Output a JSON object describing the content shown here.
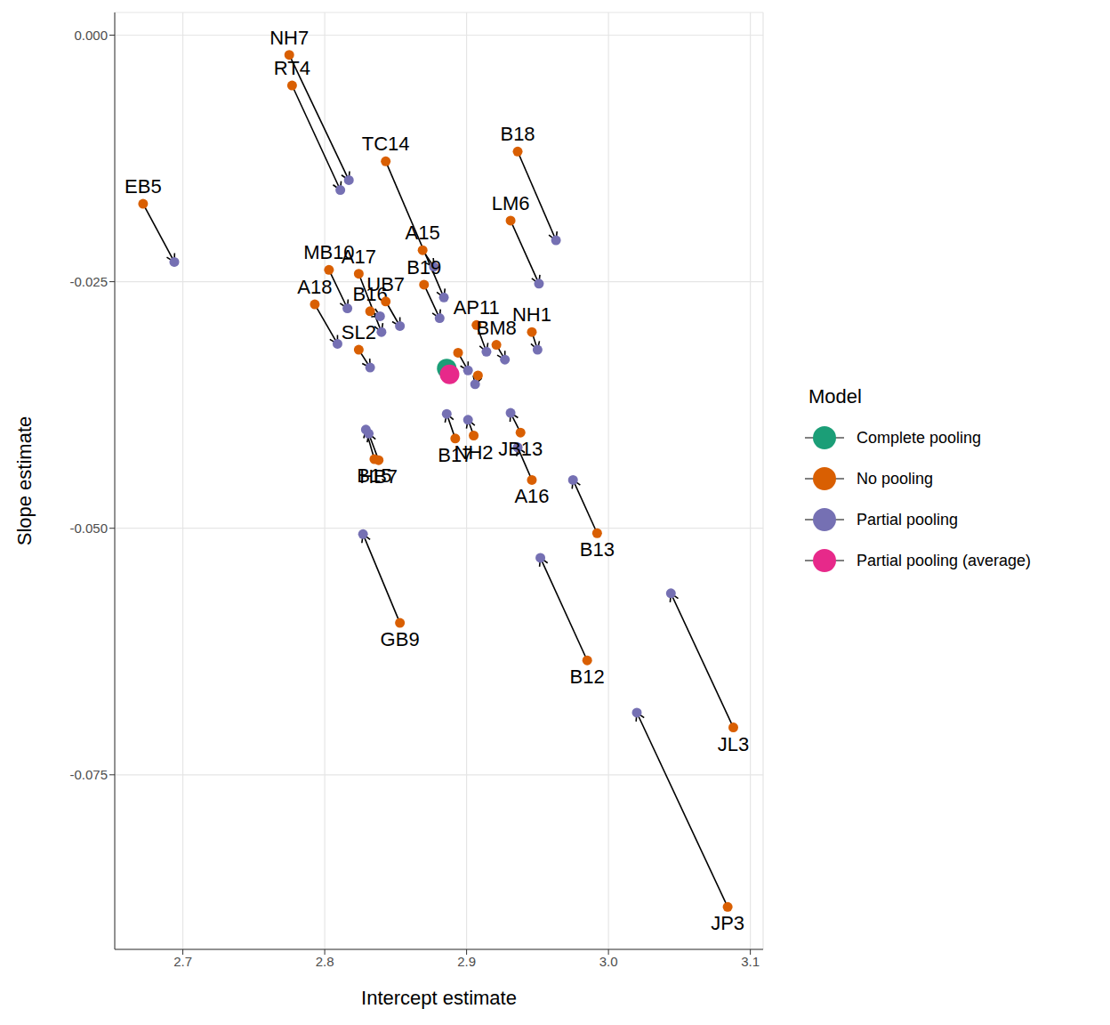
{
  "chart_data": {
    "type": "scatter",
    "x_label": "Intercept estimate",
    "y_label": "Slope estimate",
    "legend_title": "Model",
    "grid": true,
    "legend": "right",
    "xlim": [
      2.652,
      3.109
    ],
    "ylim": [
      -0.0927,
      0.0023
    ],
    "xticks": [
      2.7,
      2.8,
      2.9,
      {
        "value": 3,
        "label": "3.0"
      },
      3.1
    ],
    "yticks": [
      {
        "value": 0,
        "label": "0.000"
      },
      {
        "value": -0.025,
        "label": "-0.025"
      },
      {
        "value": -0.05,
        "label": "-0.050"
      },
      {
        "value": -0.075,
        "label": "-0.075"
      }
    ],
    "series": [
      {
        "name": "Complete pooling",
        "color": "#1B9E77",
        "x": [
          2.886
        ],
        "y": [
          -0.0338
        ]
      },
      {
        "name": "No pooling",
        "color": "#D95F02",
        "labels": [
          "NH7",
          "RT4",
          "TC14",
          "A15",
          "B19",
          "B18",
          "LM6",
          "EB5",
          "MB10",
          "A17",
          "A18",
          "B16",
          "UB7",
          "SL2",
          "AP11",
          "NH1",
          "BM8",
          null,
          null,
          "JB13",
          "A16",
          "B17",
          "NH2",
          "B15",
          "HB7",
          "B13",
          "GB9",
          "B12",
          "JL3",
          "JP3"
        ],
        "x": [
          2.775,
          2.777,
          2.843,
          2.869,
          2.87,
          2.936,
          2.931,
          2.672,
          2.803,
          2.824,
          2.793,
          2.832,
          2.843,
          2.824,
          2.907,
          2.946,
          2.921,
          2.894,
          2.908,
          2.938,
          2.946,
          2.892,
          2.905,
          2.835,
          2.838,
          2.992,
          2.853,
          2.985,
          3.088,
          3.084
        ],
        "y": [
          -0.002,
          -0.0051,
          -0.0128,
          -0.0218,
          -0.0253,
          -0.0118,
          -0.0188,
          -0.0171,
          -0.0238,
          -0.0242,
          -0.0273,
          -0.028,
          -0.027,
          -0.0319,
          -0.0294,
          -0.0301,
          -0.0314,
          -0.0322,
          -0.0345,
          -0.0403,
          -0.0451,
          -0.0409,
          -0.0406,
          -0.043,
          -0.0431,
          -0.0505,
          -0.0596,
          -0.0634,
          -0.0702,
          -0.0884
        ]
      },
      {
        "name": "Partial pooling",
        "color": "#7570B3",
        "x": [
          2.817,
          2.811,
          2.884,
          2.877,
          2.881,
          2.963,
          2.951,
          2.694,
          2.816,
          2.84,
          2.809,
          2.839,
          2.853,
          2.832,
          2.914,
          2.95,
          2.927,
          2.901,
          2.906,
          2.931,
          2.936,
          2.886,
          2.901,
          2.829,
          2.831,
          2.975,
          2.827,
          2.952,
          3.044,
          3.02
        ],
        "y": [
          -0.0147,
          -0.0157,
          -0.0266,
          -0.0235,
          -0.0287,
          -0.0208,
          -0.0252,
          -0.023,
          -0.0277,
          -0.0301,
          -0.0313,
          -0.0285,
          -0.0295,
          -0.0337,
          -0.0321,
          -0.0319,
          -0.0329,
          -0.034,
          -0.0354,
          -0.0383,
          -0.0418,
          -0.0384,
          -0.039,
          -0.04,
          -0.0404,
          -0.0451,
          -0.0506,
          -0.053,
          -0.0566,
          -0.0687
        ]
      },
      {
        "name": "Partial pooling (average)",
        "color": "#E7298A",
        "x": [
          2.888
        ],
        "y": [
          -0.0344
        ]
      }
    ]
  }
}
